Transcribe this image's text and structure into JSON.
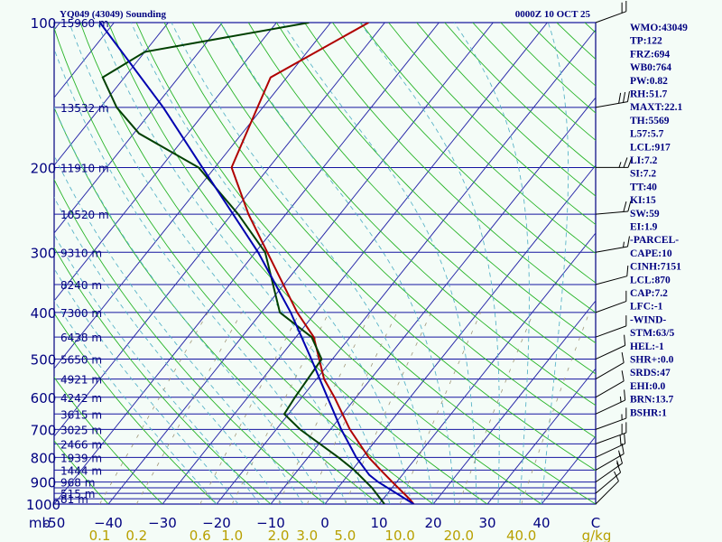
{
  "header": {
    "station": "YQ049 (43049) Sounding",
    "time": "0000Z 10 OCT 25"
  },
  "chart_data": {
    "type": "line",
    "title": "YQ049 (43049) Sounding",
    "subtitle": "0000Z 10 OCT 25",
    "xlabel": "°C",
    "ylabel": "mb",
    "x_units": "C",
    "mix_units": "g/kg",
    "xlim": [
      -50,
      50
    ],
    "ylim": [
      1000,
      100
    ],
    "pressure_ticks": [
      {
        "p": 100,
        "label": "100"
      },
      {
        "p": 200,
        "label": "200"
      },
      {
        "p": 300,
        "label": "300"
      },
      {
        "p": 400,
        "label": "400"
      },
      {
        "p": 500,
        "label": "500"
      },
      {
        "p": 600,
        "label": "600"
      },
      {
        "p": 700,
        "label": "700"
      },
      {
        "p": 800,
        "label": "800"
      },
      {
        "p": 900,
        "label": "900"
      },
      {
        "p": 1000,
        "label": "1000"
      }
    ],
    "height_labels": [
      {
        "p": 100,
        "label": "15960 m"
      },
      {
        "p": 150,
        "label": "13532 m"
      },
      {
        "p": 200,
        "label": "11910 m"
      },
      {
        "p": 250,
        "label": "10520 m"
      },
      {
        "p": 300,
        "label": "9310 m"
      },
      {
        "p": 350,
        "label": "8240 m"
      },
      {
        "p": 400,
        "label": "7300 m"
      },
      {
        "p": 450,
        "label": "6438 m"
      },
      {
        "p": 500,
        "label": "5650 m"
      },
      {
        "p": 550,
        "label": "4921 m"
      },
      {
        "p": 600,
        "label": "4242 m"
      },
      {
        "p": 650,
        "label": "3615 m"
      },
      {
        "p": 700,
        "label": "3025 m"
      },
      {
        "p": 750,
        "label": "2466 m"
      },
      {
        "p": 800,
        "label": "1939 m"
      },
      {
        "p": 850,
        "label": "1444 m"
      },
      {
        "p": 900,
        "label": "968 m"
      },
      {
        "p": 950,
        "label": "515 m"
      },
      {
        "p": 975,
        "label": "81 m"
      }
    ],
    "temp_ticks": [
      {
        "t": -50,
        "label": "-50"
      },
      {
        "t": -40,
        "label": "−40"
      },
      {
        "t": -30,
        "label": "−30"
      },
      {
        "t": -20,
        "label": "−20"
      },
      {
        "t": -10,
        "label": "−10"
      },
      {
        "t": 0,
        "label": "0"
      },
      {
        "t": 10,
        "label": "10"
      },
      {
        "t": 20,
        "label": "20"
      },
      {
        "t": 30,
        "label": "30"
      },
      {
        "t": 40,
        "label": "40"
      },
      {
        "t": 50,
        "label": "C"
      }
    ],
    "mixing_ratio_labels": [
      {
        "w": 0.1,
        "label": "0.1"
      },
      {
        "w": 0.2,
        "label": "0.2"
      },
      {
        "w": 0.6,
        "label": "0.6"
      },
      {
        "w": 1.0,
        "label": "1.0"
      },
      {
        "w": 2.0,
        "label": "2.0"
      },
      {
        "w": 3.0,
        "label": "3.0"
      },
      {
        "w": 5.0,
        "label": "5.0"
      },
      {
        "w": 10.0,
        "label": "10.0"
      },
      {
        "w": 20.0,
        "label": "20.0"
      },
      {
        "w": 40.0,
        "label": "40.0"
      }
    ],
    "series": [
      {
        "name": "Temperature",
        "color": "#b00000",
        "points": [
          {
            "p": 1000,
            "t": 16.4
          },
          {
            "p": 975,
            "t": 14.8
          },
          {
            "p": 900,
            "t": 9.2
          },
          {
            "p": 850,
            "t": 5.3
          },
          {
            "p": 800,
            "t": 1.2
          },
          {
            "p": 700,
            "t": -6.4
          },
          {
            "p": 600,
            "t": -14.0
          },
          {
            "p": 550,
            "t": -18.6
          },
          {
            "p": 450,
            "t": -26.7
          },
          {
            "p": 400,
            "t": -33.4
          },
          {
            "p": 300,
            "t": -47.8
          },
          {
            "p": 250,
            "t": -56.9
          },
          {
            "p": 200,
            "t": -66.9
          },
          {
            "p": 150,
            "t": -71.0
          },
          {
            "p": 130,
            "t": -73.0
          },
          {
            "p": 100,
            "t": -63.0
          }
        ]
      },
      {
        "name": "Dewpoint",
        "color": "#004000",
        "points": [
          {
            "p": 1000,
            "t": 11.0
          },
          {
            "p": 925,
            "t": 6.3
          },
          {
            "p": 850,
            "t": 0.4
          },
          {
            "p": 800,
            "t": -4.4
          },
          {
            "p": 700,
            "t": -15.6
          },
          {
            "p": 650,
            "t": -20.8
          },
          {
            "p": 600,
            "t": -21.3
          },
          {
            "p": 500,
            "t": -22.0
          },
          {
            "p": 450,
            "t": -27.1
          },
          {
            "p": 400,
            "t": -36.6
          },
          {
            "p": 300,
            "t": -48.2
          },
          {
            "p": 250,
            "t": -58.8
          },
          {
            "p": 200,
            "t": -73.0
          },
          {
            "p": 170,
            "t": -89.0
          },
          {
            "p": 150,
            "t": -97.0
          },
          {
            "p": 130,
            "t": -104.0
          },
          {
            "p": 115,
            "t": -100.0
          },
          {
            "p": 100,
            "t": -74.0
          }
        ]
      },
      {
        "name": "Parcel",
        "color": "#0000b0",
        "points": [
          {
            "p": 1000,
            "t": 16.4
          },
          {
            "p": 900,
            "t": 6.6
          },
          {
            "p": 870,
            "t": 3.9
          },
          {
            "p": 800,
            "t": -1.1
          },
          {
            "p": 700,
            "t": -8.0
          },
          {
            "p": 600,
            "t": -15.3
          },
          {
            "p": 500,
            "t": -23.9
          },
          {
            "p": 400,
            "t": -34.6
          },
          {
            "p": 300,
            "t": -49.5
          },
          {
            "p": 200,
            "t": -72.3
          },
          {
            "p": 150,
            "t": -88.4
          },
          {
            "p": 100,
            "t": -112.6
          }
        ]
      }
    ]
  },
  "indices": [
    "WMO:43049",
    "TP:122",
    "FRZ:694",
    "WB0:764",
    "PW:0.82",
    "RH:51.7",
    "MAXT:22.1",
    "TH:5569",
    "L57:5.7",
    "LCL:917",
    "LI:7.2",
    "SI:7.2",
    "TT:40",
    "KI:15",
    "SW:59",
    "EI:1.9",
    "-PARCEL-",
    "CAPE:10",
    "CINH:7151",
    "LCL:870",
    "CAP:7.2",
    "LFC:-1",
    "-WIND-",
    "STM:63/5",
    "HEL:-1",
    "SHR+:0.0",
    "SRDS:47",
    "EHI:0.0",
    "BRN:13.7",
    "BSHR:1"
  ],
  "wind_barbs": [
    {
      "p": 100,
      "dir": 250,
      "kt": 20
    },
    {
      "p": 150,
      "dir": 260,
      "kt": 30
    },
    {
      "p": 200,
      "dir": 270,
      "kt": 25
    },
    {
      "p": 250,
      "dir": 265,
      "kt": 20
    },
    {
      "p": 300,
      "dir": 260,
      "kt": 15
    },
    {
      "p": 350,
      "dir": 255,
      "kt": 10
    },
    {
      "p": 400,
      "dir": 250,
      "kt": 10
    },
    {
      "p": 450,
      "dir": 250,
      "kt": 10
    },
    {
      "p": 500,
      "dir": 245,
      "kt": 10
    },
    {
      "p": 550,
      "dir": 240,
      "kt": 10
    },
    {
      "p": 600,
      "dir": 240,
      "kt": 10
    },
    {
      "p": 650,
      "dir": 245,
      "kt": 15
    },
    {
      "p": 700,
      "dir": 250,
      "kt": 15
    },
    {
      "p": 750,
      "dir": 250,
      "kt": 20
    },
    {
      "p": 800,
      "dir": 245,
      "kt": 20
    },
    {
      "p": 850,
      "dir": 240,
      "kt": 15
    },
    {
      "p": 900,
      "dir": 235,
      "kt": 15
    },
    {
      "p": 950,
      "dir": 230,
      "kt": 10
    },
    {
      "p": 1000,
      "dir": 225,
      "kt": 10
    }
  ]
}
